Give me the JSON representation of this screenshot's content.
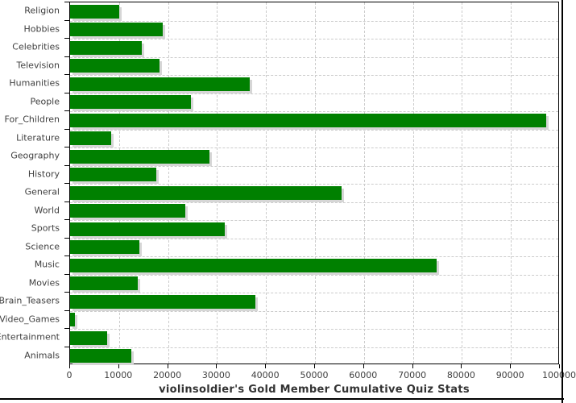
{
  "chart_data": {
    "type": "bar",
    "orientation": "horizontal",
    "title": "violinsoldier's Gold Member Cumulative Quiz Stats",
    "categories": [
      "Religion",
      "Hobbies",
      "Celebrities",
      "Television",
      "Humanities",
      "People",
      "For_Children",
      "Literature",
      "Geography",
      "History",
      "General",
      "World",
      "Sports",
      "Science",
      "Music",
      "Movies",
      "Brain_Teasers",
      "Video_Games",
      "Entertainment",
      "Animals"
    ],
    "values": [
      10000,
      18900,
      14700,
      18300,
      36600,
      24700,
      97200,
      8400,
      28500,
      17600,
      55500,
      23600,
      31600,
      14100,
      74800,
      13800,
      37800,
      1000,
      7600,
      12500
    ],
    "xlabel": "",
    "ylabel": "",
    "xlim": [
      0,
      100000
    ],
    "x_ticks": [
      0,
      10000,
      20000,
      30000,
      40000,
      50000,
      60000,
      70000,
      80000,
      90000,
      100000
    ],
    "x_tick_labels": [
      "0",
      "10000",
      "20000",
      "30000",
      "40000",
      "50000",
      "60000",
      "70000",
      "80000",
      "90000",
      "100000"
    ],
    "grid": true,
    "gridline_style": "dashed",
    "legend_position": "none",
    "title_position": "bottom",
    "bar_color": "#008000",
    "bar_shadow_color": "#d6d6d6",
    "gridline_color": "#cccccc",
    "axis_color": "#000000",
    "tick_label_color": "#3f3f3f",
    "title_color": "#333333",
    "background_color": "#ffffff"
  }
}
